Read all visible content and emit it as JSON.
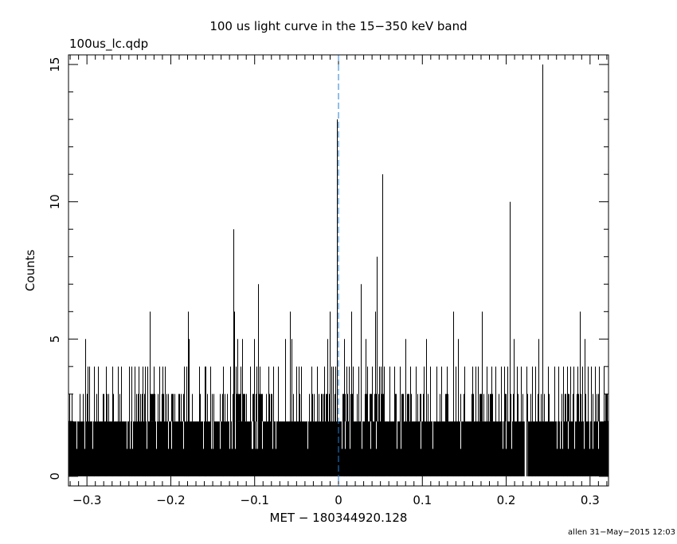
{
  "chart_data": {
    "type": "bar",
    "title": "100 us light curve in the 15−350 keV band",
    "subtitle": "100us_lc.qdp",
    "xlabel": "MET − 180344920.128",
    "ylabel": "Counts",
    "footer": "allen 31−May−2015 12:03",
    "xlim": [
      -0.322,
      0.322
    ],
    "ylim": [
      -0.35,
      15.35
    ],
    "x_ticks": [
      -0.3,
      -0.2,
      -0.1,
      0,
      0.1,
      0.2,
      0.3
    ],
    "x_tick_labels": [
      "−0.3",
      "−0.2",
      "−0.1",
      "0",
      "0.1",
      "0.2",
      "0.3"
    ],
    "y_ticks": [
      0,
      5,
      10,
      15
    ],
    "y_tick_labels": [
      "0",
      "5",
      "10",
      "15"
    ],
    "grid": false,
    "bin_width": 0.0001,
    "baseline_counts": 2,
    "trigger_line": {
      "x": 0,
      "color": "#1f7fd6",
      "style": "dashed"
    },
    "gap_bins": [
      [
        0.222,
        0.2255
      ]
    ],
    "spikes": [
      {
        "x": -0.3017,
        "counts": 5
      },
      {
        "x": -0.299,
        "counts": 4
      },
      {
        "x": -0.297,
        "counts": 4
      },
      {
        "x": -0.2915,
        "counts": 4
      },
      {
        "x": -0.2865,
        "counts": 4
      },
      {
        "x": -0.2775,
        "counts": 4
      },
      {
        "x": -0.27,
        "counts": 4
      },
      {
        "x": -0.2635,
        "counts": 4
      },
      {
        "x": -0.259,
        "counts": 4
      },
      {
        "x": -0.25,
        "counts": 4
      },
      {
        "x": -0.2465,
        "counts": 4
      },
      {
        "x": -0.2435,
        "counts": 4
      },
      {
        "x": -0.2385,
        "counts": 4
      },
      {
        "x": -0.2335,
        "counts": 4
      },
      {
        "x": -0.2305,
        "counts": 4
      },
      {
        "x": -0.2275,
        "counts": 4
      },
      {
        "x": -0.2255,
        "counts": 6
      },
      {
        "x": -0.2205,
        "counts": 4
      },
      {
        "x": -0.214,
        "counts": 4
      },
      {
        "x": -0.21,
        "counts": 4
      },
      {
        "x": -0.2075,
        "counts": 4
      },
      {
        "x": -0.1845,
        "counts": 4
      },
      {
        "x": -0.1815,
        "counts": 4
      },
      {
        "x": -0.1795,
        "counts": 6
      },
      {
        "x": -0.1785,
        "counts": 5
      },
      {
        "x": -0.1665,
        "counts": 4
      },
      {
        "x": -0.1595,
        "counts": 4
      },
      {
        "x": -0.1585,
        "counts": 4
      },
      {
        "x": -0.1525,
        "counts": 4
      },
      {
        "x": -0.1375,
        "counts": 4
      },
      {
        "x": -0.1295,
        "counts": 4
      },
      {
        "x": -0.1255,
        "counts": 9
      },
      {
        "x": -0.1245,
        "counts": 6
      },
      {
        "x": -0.1225,
        "counts": 4
      },
      {
        "x": -0.1205,
        "counts": 5
      },
      {
        "x": -0.1165,
        "counts": 4
      },
      {
        "x": -0.1145,
        "counts": 5
      },
      {
        "x": -0.1055,
        "counts": 4
      },
      {
        "x": -0.1005,
        "counts": 5
      },
      {
        "x": -0.0975,
        "counts": 4
      },
      {
        "x": -0.0955,
        "counts": 7
      },
      {
        "x": -0.0945,
        "counts": 4
      },
      {
        "x": -0.0835,
        "counts": 4
      },
      {
        "x": -0.0775,
        "counts": 4
      },
      {
        "x": -0.0725,
        "counts": 4
      },
      {
        "x": -0.0635,
        "counts": 5
      },
      {
        "x": -0.0575,
        "counts": 6
      },
      {
        "x": -0.0565,
        "counts": 5
      },
      {
        "x": -0.0505,
        "counts": 4
      },
      {
        "x": -0.0475,
        "counts": 4
      },
      {
        "x": -0.0445,
        "counts": 4
      },
      {
        "x": -0.0325,
        "counts": 4
      },
      {
        "x": -0.0255,
        "counts": 4
      },
      {
        "x": -0.0175,
        "counts": 4
      },
      {
        "x": -0.0135,
        "counts": 5
      },
      {
        "x": -0.0105,
        "counts": 6
      },
      {
        "x": -0.0085,
        "counts": 4
      },
      {
        "x": -0.0065,
        "counts": 4
      },
      {
        "x": -0.0035,
        "counts": 4
      },
      {
        "x": -0.0015,
        "counts": 13
      },
      {
        "x": 0.0065,
        "counts": 5
      },
      {
        "x": 0.0095,
        "counts": 4
      },
      {
        "x": 0.0125,
        "counts": 4
      },
      {
        "x": 0.0155,
        "counts": 6
      },
      {
        "x": 0.0175,
        "counts": 4
      },
      {
        "x": 0.0235,
        "counts": 4
      },
      {
        "x": 0.0265,
        "counts": 7
      },
      {
        "x": 0.0325,
        "counts": 5
      },
      {
        "x": 0.0345,
        "counts": 4
      },
      {
        "x": 0.0395,
        "counts": 4
      },
      {
        "x": 0.0435,
        "counts": 6
      },
      {
        "x": 0.0455,
        "counts": 8
      },
      {
        "x": 0.0485,
        "counts": 4
      },
      {
        "x": 0.0505,
        "counts": 4
      },
      {
        "x": 0.0525,
        "counts": 11
      },
      {
        "x": 0.0545,
        "counts": 4
      },
      {
        "x": 0.0605,
        "counts": 4
      },
      {
        "x": 0.0665,
        "counts": 4
      },
      {
        "x": 0.0735,
        "counts": 4
      },
      {
        "x": 0.0795,
        "counts": 5
      },
      {
        "x": 0.0855,
        "counts": 4
      },
      {
        "x": 0.0925,
        "counts": 4
      },
      {
        "x": 0.1015,
        "counts": 4
      },
      {
        "x": 0.1045,
        "counts": 5
      },
      {
        "x": 0.1095,
        "counts": 4
      },
      {
        "x": 0.1165,
        "counts": 4
      },
      {
        "x": 0.1225,
        "counts": 4
      },
      {
        "x": 0.1295,
        "counts": 4
      },
      {
        "x": 0.1365,
        "counts": 6
      },
      {
        "x": 0.1395,
        "counts": 4
      },
      {
        "x": 0.1425,
        "counts": 5
      },
      {
        "x": 0.1505,
        "counts": 4
      },
      {
        "x": 0.1595,
        "counts": 4
      },
      {
        "x": 0.1635,
        "counts": 4
      },
      {
        "x": 0.1665,
        "counts": 4
      },
      {
        "x": 0.1705,
        "counts": 6
      },
      {
        "x": 0.1765,
        "counts": 4
      },
      {
        "x": 0.1825,
        "counts": 4
      },
      {
        "x": 0.1875,
        "counts": 4
      },
      {
        "x": 0.1935,
        "counts": 4
      },
      {
        "x": 0.1975,
        "counts": 4
      },
      {
        "x": 0.2015,
        "counts": 4
      },
      {
        "x": 0.2045,
        "counts": 10
      },
      {
        "x": 0.2085,
        "counts": 5
      },
      {
        "x": 0.2125,
        "counts": 4
      },
      {
        "x": 0.2175,
        "counts": 4
      },
      {
        "x": 0.2245,
        "counts": 4
      },
      {
        "x": 0.2305,
        "counts": 4
      },
      {
        "x": 0.2345,
        "counts": 4
      },
      {
        "x": 0.2385,
        "counts": 5
      },
      {
        "x": 0.2435,
        "counts": 15
      },
      {
        "x": 0.2495,
        "counts": 4
      },
      {
        "x": 0.2575,
        "counts": 4
      },
      {
        "x": 0.2625,
        "counts": 4
      },
      {
        "x": 0.2675,
        "counts": 4
      },
      {
        "x": 0.2725,
        "counts": 4
      },
      {
        "x": 0.2765,
        "counts": 4
      },
      {
        "x": 0.2805,
        "counts": 4
      },
      {
        "x": 0.2845,
        "counts": 4
      },
      {
        "x": 0.2875,
        "counts": 6
      },
      {
        "x": 0.2905,
        "counts": 4
      },
      {
        "x": 0.2935,
        "counts": 5
      },
      {
        "x": 0.2975,
        "counts": 4
      },
      {
        "x": 0.3015,
        "counts": 4
      },
      {
        "x": 0.3055,
        "counts": 4
      },
      {
        "x": 0.3105,
        "counts": 4
      },
      {
        "x": 0.3165,
        "counts": 4
      }
    ]
  }
}
